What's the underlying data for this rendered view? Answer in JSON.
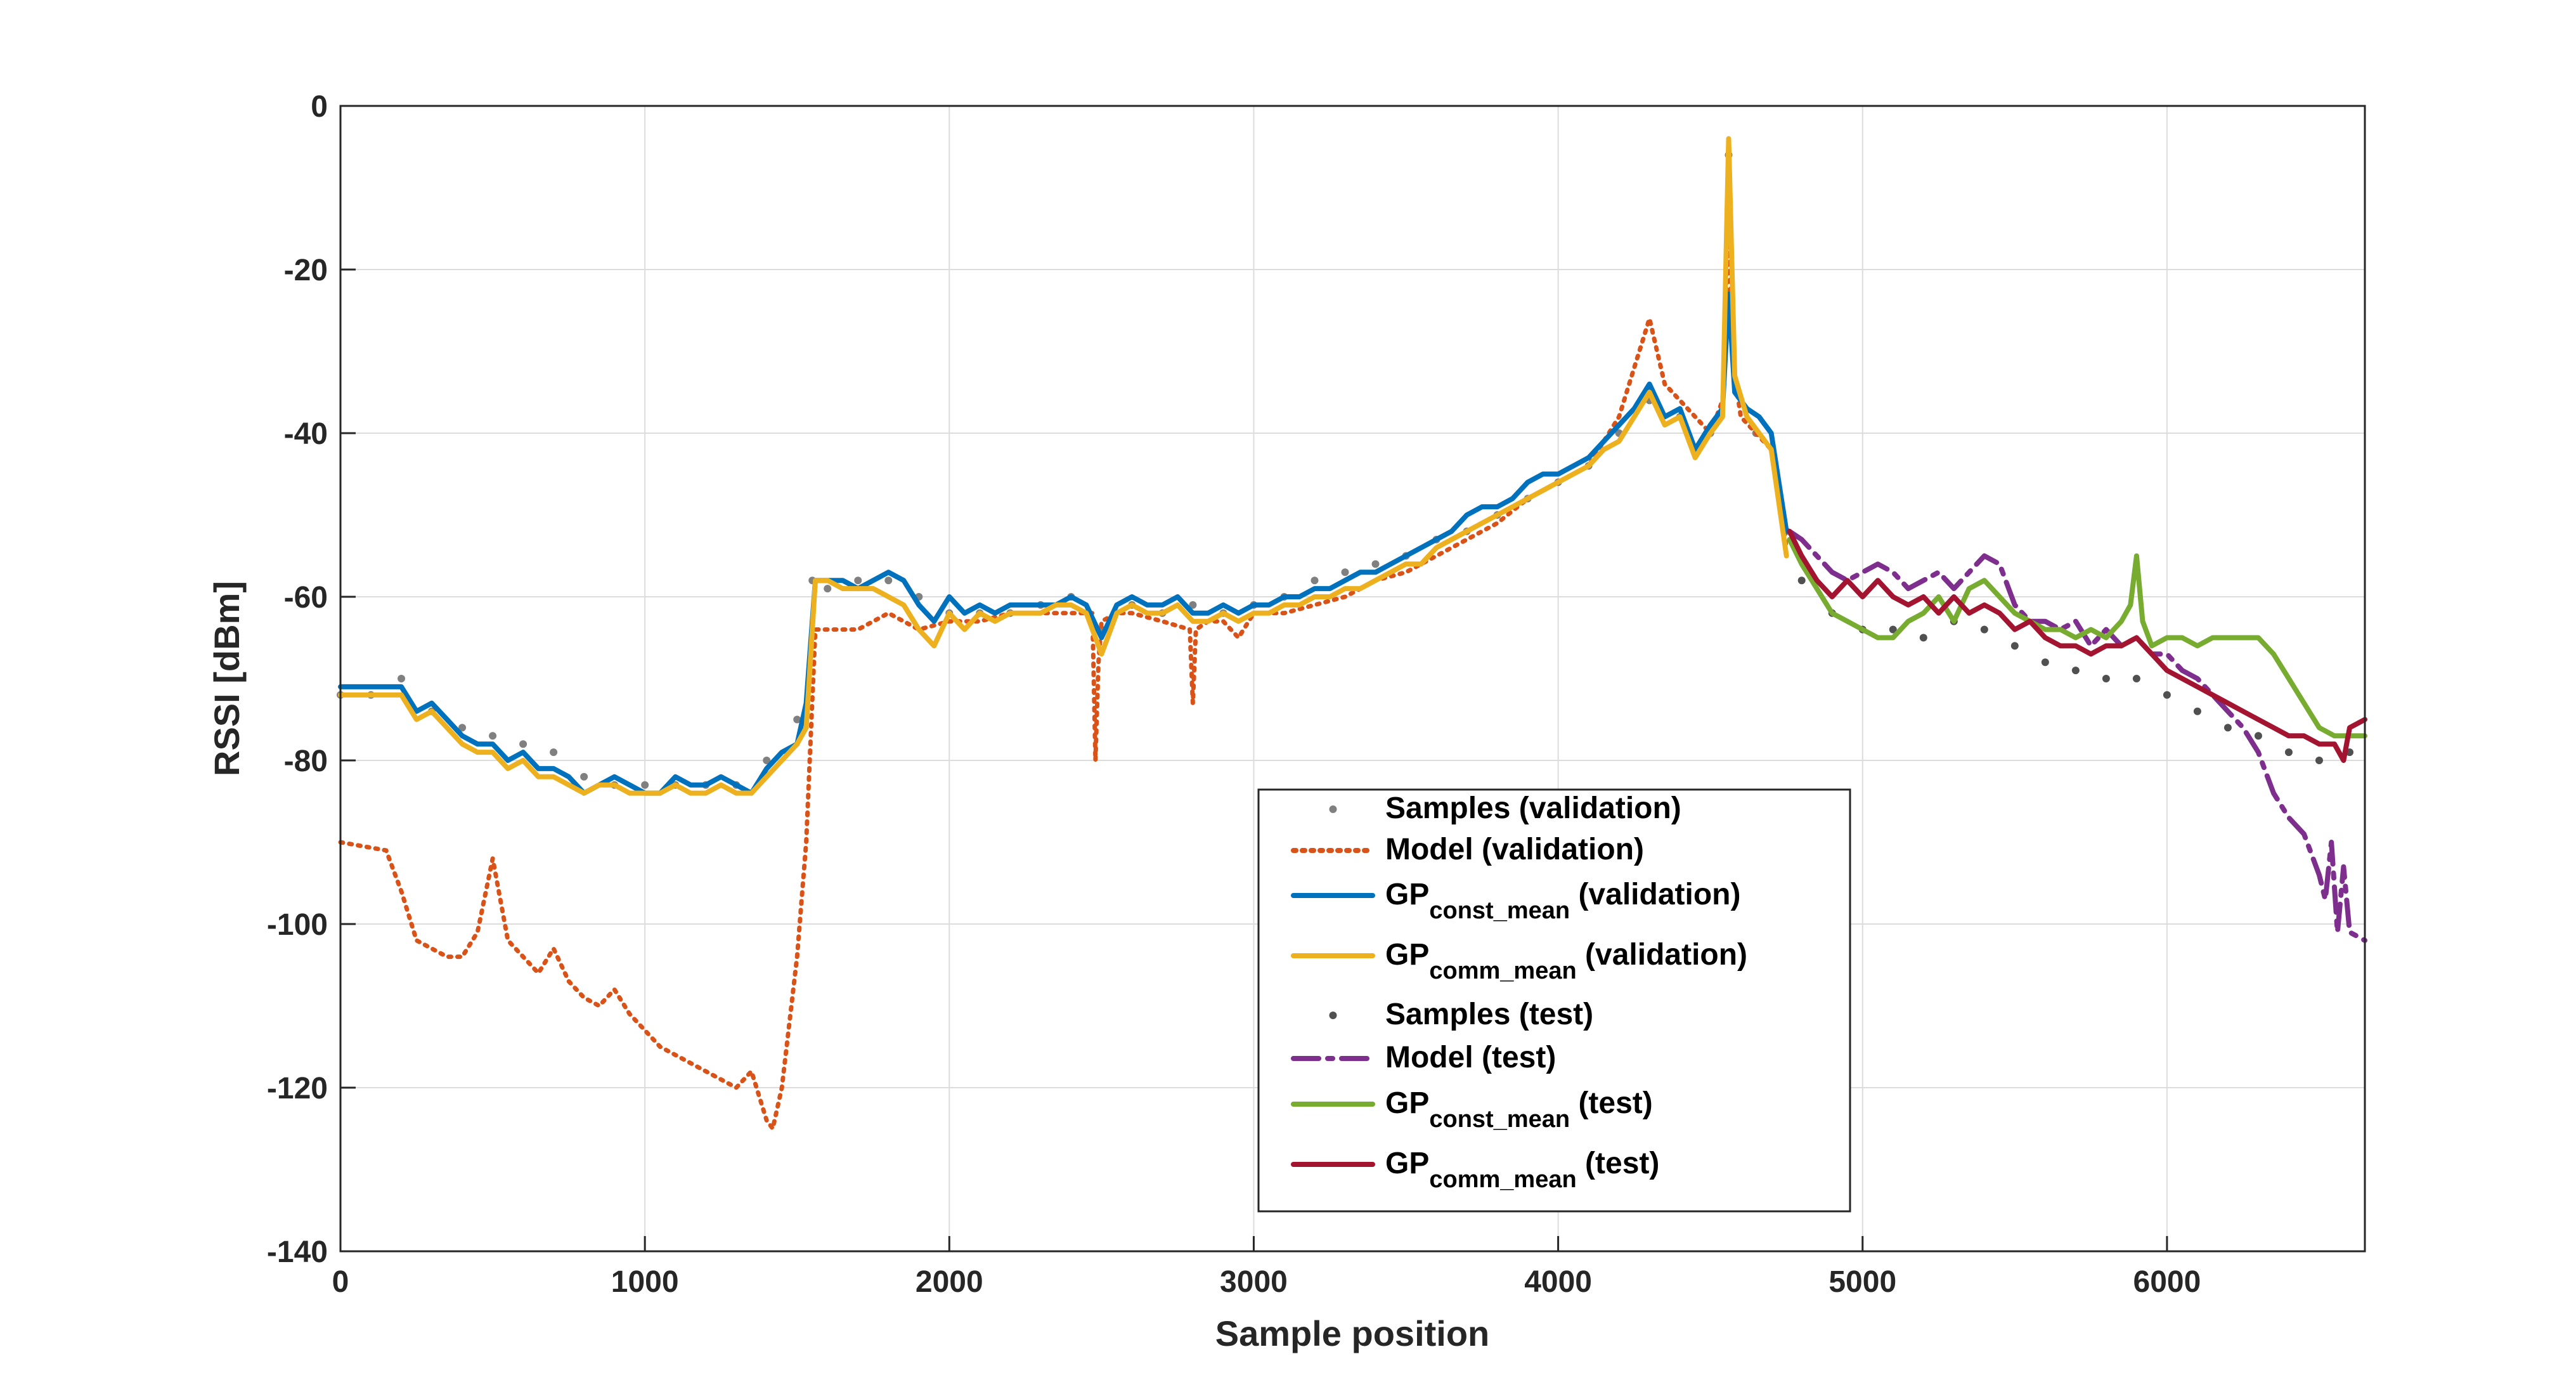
{
  "chart_data": {
    "type": "line",
    "title": "",
    "xlabel": "Sample position",
    "ylabel": "RSSI [dBm]",
    "xlim": [
      0,
      6650
    ],
    "ylim": [
      -140,
      0
    ],
    "xticks": [
      0,
      1000,
      2000,
      3000,
      4000,
      5000,
      6000
    ],
    "yticks": [
      0,
      -20,
      -40,
      -60,
      -80,
      -100,
      -120,
      -140
    ],
    "grid": true,
    "legend_position": "bottom-center",
    "series": [
      {
        "id": "samples_val",
        "legend_main": "Samples (validation)",
        "legend_sub": "",
        "legend_suffix": "",
        "kind": "scatter",
        "color": "#808080",
        "x": [
          0,
          100,
          200,
          300,
          400,
          500,
          600,
          700,
          800,
          900,
          1000,
          1100,
          1200,
          1300,
          1400,
          1500,
          1550,
          1600,
          1700,
          1800,
          1900,
          2000,
          2100,
          2200,
          2300,
          2400,
          2500,
          2600,
          2700,
          2800,
          2900,
          3000,
          3100,
          3200,
          3300,
          3400,
          3500,
          3600,
          3700,
          3800,
          3900,
          4000,
          4100,
          4200,
          4300,
          4400,
          4500,
          4560,
          4650,
          4750
        ],
        "y": [
          -72,
          -72,
          -70,
          -74,
          -76,
          -77,
          -78,
          -79,
          -82,
          -83,
          -83,
          -83,
          -83,
          -83,
          -80,
          -75,
          -58,
          -59,
          -58,
          -58,
          -60,
          -62,
          -62,
          -62,
          -61,
          -60,
          -64,
          -61,
          -62,
          -61,
          -62,
          -61,
          -60,
          -58,
          -57,
          -56,
          -55,
          -53,
          -52,
          -50,
          -48,
          -46,
          -44,
          -40,
          -36,
          -38,
          -40,
          -6,
          -40,
          -52
        ]
      },
      {
        "id": "model_val",
        "legend_main": "Model (validation)",
        "legend_sub": "",
        "legend_suffix": "",
        "kind": "dotted",
        "color": "#D95319",
        "x": [
          0,
          150,
          200,
          250,
          300,
          350,
          400,
          450,
          500,
          550,
          600,
          650,
          700,
          750,
          800,
          850,
          900,
          950,
          1000,
          1050,
          1100,
          1150,
          1200,
          1250,
          1300,
          1350,
          1400,
          1420,
          1450,
          1500,
          1530,
          1560,
          1600,
          1700,
          1800,
          1900,
          2000,
          2100,
          2200,
          2300,
          2400,
          2470,
          2480,
          2490,
          2500,
          2550,
          2600,
          2700,
          2790,
          2800,
          2810,
          2850,
          2900,
          2950,
          3000,
          3100,
          3200,
          3300,
          3400,
          3500,
          3600,
          3700,
          3800,
          3900,
          4000,
          4100,
          4200,
          4250,
          4300,
          4350,
          4400,
          4500,
          4540,
          4560,
          4580,
          4600,
          4650,
          4700,
          4750
        ],
        "y": [
          -90,
          -91,
          -96,
          -102,
          -103,
          -104,
          -104,
          -101,
          -92,
          -102,
          -104,
          -106,
          -103,
          -107,
          -109,
          -110,
          -108,
          -111,
          -113,
          -115,
          -116,
          -117,
          -118,
          -119,
          -120,
          -118,
          -124,
          -125,
          -120,
          -104,
          -90,
          -64,
          -64,
          -64,
          -62,
          -64,
          -63,
          -63,
          -62,
          -62,
          -62,
          -62,
          -80,
          -68,
          -63,
          -62,
          -62,
          -63,
          -64,
          -73,
          -64,
          -63,
          -63,
          -65,
          -62,
          -62,
          -61,
          -60,
          -58,
          -57,
          -55,
          -53,
          -51,
          -48,
          -46,
          -44,
          -38,
          -32,
          -26,
          -34,
          -36,
          -40,
          -36,
          -16,
          -33,
          -38,
          -40,
          -42,
          -54
        ]
      },
      {
        "id": "gp_const_val",
        "legend_main": "GP",
        "legend_sub": "const_mean",
        "legend_suffix": "(validation)",
        "kind": "solid",
        "color": "#0072BD",
        "x": [
          0,
          120,
          200,
          250,
          300,
          350,
          400,
          450,
          500,
          550,
          600,
          650,
          700,
          750,
          800,
          850,
          900,
          950,
          1000,
          1050,
          1100,
          1150,
          1200,
          1250,
          1300,
          1350,
          1400,
          1450,
          1500,
          1530,
          1560,
          1600,
          1650,
          1700,
          1750,
          1800,
          1850,
          1900,
          1950,
          2000,
          2050,
          2100,
          2150,
          2200,
          2250,
          2300,
          2350,
          2400,
          2450,
          2500,
          2550,
          2600,
          2650,
          2700,
          2750,
          2800,
          2850,
          2900,
          2950,
          3000,
          3050,
          3100,
          3150,
          3200,
          3250,
          3300,
          3350,
          3400,
          3450,
          3500,
          3550,
          3600,
          3650,
          3700,
          3750,
          3800,
          3850,
          3900,
          3950,
          4000,
          4050,
          4100,
          4150,
          4200,
          4250,
          4300,
          4350,
          4400,
          4450,
          4500,
          4540,
          4560,
          4580,
          4620,
          4660,
          4700,
          4750
        ],
        "y": [
          -71,
          -71,
          -71,
          -74,
          -73,
          -75,
          -77,
          -78,
          -78,
          -80,
          -79,
          -81,
          -81,
          -82,
          -84,
          -83,
          -82,
          -83,
          -84,
          -84,
          -82,
          -83,
          -83,
          -82,
          -83,
          -84,
          -81,
          -79,
          -78,
          -73,
          -58,
          -58,
          -58,
          -59,
          -58,
          -57,
          -58,
          -61,
          -63,
          -60,
          -62,
          -61,
          -62,
          -61,
          -61,
          -61,
          -61,
          -60,
          -61,
          -65,
          -61,
          -60,
          -61,
          -61,
          -60,
          -62,
          -62,
          -61,
          -62,
          -61,
          -61,
          -60,
          -60,
          -59,
          -59,
          -58,
          -57,
          -57,
          -56,
          -55,
          -54,
          -53,
          -52,
          -50,
          -49,
          -49,
          -48,
          -46,
          -45,
          -45,
          -44,
          -43,
          -41,
          -39,
          -37,
          -34,
          -38,
          -37,
          -42,
          -39,
          -37,
          -23,
          -35,
          -37,
          -38,
          -40,
          -52
        ]
      },
      {
        "id": "gp_comm_val",
        "legend_main": "GP",
        "legend_sub": "comm_mean",
        "legend_suffix": "(validation)",
        "kind": "solid",
        "color": "#EDB120",
        "x": [
          0,
          120,
          200,
          250,
          300,
          350,
          400,
          450,
          500,
          550,
          600,
          650,
          700,
          750,
          800,
          850,
          900,
          950,
          1000,
          1050,
          1100,
          1150,
          1200,
          1250,
          1300,
          1350,
          1400,
          1450,
          1500,
          1530,
          1560,
          1600,
          1650,
          1700,
          1750,
          1800,
          1850,
          1900,
          1950,
          2000,
          2050,
          2100,
          2150,
          2200,
          2250,
          2300,
          2350,
          2400,
          2450,
          2500,
          2550,
          2600,
          2650,
          2700,
          2750,
          2800,
          2850,
          2900,
          2950,
          3000,
          3050,
          3100,
          3150,
          3200,
          3250,
          3300,
          3350,
          3400,
          3450,
          3500,
          3550,
          3600,
          3650,
          3700,
          3750,
          3800,
          3850,
          3900,
          3950,
          4000,
          4050,
          4100,
          4150,
          4200,
          4250,
          4300,
          4350,
          4400,
          4450,
          4500,
          4540,
          4560,
          4580,
          4620,
          4660,
          4700,
          4750
        ],
        "y": [
          -72,
          -72,
          -72,
          -75,
          -74,
          -76,
          -78,
          -79,
          -79,
          -81,
          -80,
          -82,
          -82,
          -83,
          -84,
          -83,
          -83,
          -84,
          -84,
          -84,
          -83,
          -84,
          -84,
          -83,
          -84,
          -84,
          -82,
          -80,
          -78,
          -76,
          -58,
          -58,
          -59,
          -59,
          -59,
          -60,
          -61,
          -64,
          -66,
          -62,
          -64,
          -62,
          -63,
          -62,
          -62,
          -62,
          -61,
          -61,
          -62,
          -67,
          -62,
          -61,
          -62,
          -62,
          -61,
          -63,
          -63,
          -62,
          -63,
          -62,
          -62,
          -61,
          -61,
          -60,
          -60,
          -59,
          -59,
          -58,
          -57,
          -56,
          -56,
          -54,
          -53,
          -52,
          -51,
          -50,
          -49,
          -48,
          -47,
          -46,
          -45,
          -44,
          -42,
          -41,
          -38,
          -35,
          -39,
          -38,
          -43,
          -40,
          -38,
          -4,
          -33,
          -38,
          -40,
          -42,
          -55
        ]
      },
      {
        "id": "samples_test",
        "legend_main": "Samples (test)",
        "legend_sub": "",
        "legend_suffix": "",
        "kind": "scatter",
        "color": "#505050",
        "x": [
          4800,
          4900,
          5000,
          5100,
          5200,
          5300,
          5400,
          5500,
          5600,
          5700,
          5800,
          5900,
          6000,
          6100,
          6200,
          6300,
          6400,
          6500,
          6600
        ],
        "y": [
          -58,
          -62,
          -64,
          -64,
          -65,
          -63,
          -64,
          -66,
          -68,
          -69,
          -70,
          -70,
          -72,
          -74,
          -76,
          -77,
          -79,
          -80,
          -79
        ]
      },
      {
        "id": "model_test",
        "legend_main": "Model (test)",
        "legend_sub": "",
        "legend_suffix": "",
        "kind": "dashdot",
        "color": "#7E2F8E",
        "x": [
          4760,
          4800,
          4850,
          4900,
          4950,
          5000,
          5050,
          5100,
          5150,
          5200,
          5250,
          5300,
          5350,
          5400,
          5450,
          5500,
          5550,
          5600,
          5650,
          5700,
          5750,
          5800,
          5850,
          5900,
          5950,
          6000,
          6050,
          6100,
          6150,
          6200,
          6250,
          6300,
          6350,
          6400,
          6450,
          6500,
          6520,
          6540,
          6560,
          6580,
          6600,
          6650
        ],
        "y": [
          -52,
          -53,
          -55,
          -57,
          -58,
          -57,
          -56,
          -57,
          -59,
          -58,
          -57,
          -59,
          -57,
          -55,
          -56,
          -61,
          -63,
          -63,
          -64,
          -63,
          -66,
          -64,
          -66,
          -65,
          -67,
          -67,
          -69,
          -70,
          -72,
          -74,
          -76,
          -79,
          -84,
          -87,
          -89,
          -94,
          -97,
          -90,
          -101,
          -93,
          -101,
          -102
        ]
      },
      {
        "id": "gp_const_test",
        "legend_main": "GP",
        "legend_sub": "const_mean",
        "legend_suffix": "(test)",
        "kind": "solid",
        "color": "#77AC30",
        "x": [
          4760,
          4800,
          4850,
          4900,
          4950,
          5000,
          5050,
          5100,
          5150,
          5200,
          5250,
          5300,
          5350,
          5400,
          5450,
          5500,
          5550,
          5600,
          5650,
          5700,
          5750,
          5800,
          5850,
          5880,
          5900,
          5920,
          5950,
          6000,
          6050,
          6100,
          6150,
          6200,
          6250,
          6300,
          6350,
          6400,
          6450,
          6500,
          6550,
          6650
        ],
        "y": [
          -53,
          -56,
          -59,
          -62,
          -63,
          -64,
          -65,
          -65,
          -63,
          -62,
          -60,
          -63,
          -59,
          -58,
          -60,
          -62,
          -63,
          -64,
          -64,
          -65,
          -64,
          -65,
          -63,
          -61,
          -55,
          -63,
          -66,
          -65,
          -65,
          -66,
          -65,
          -65,
          -65,
          -65,
          -67,
          -70,
          -73,
          -76,
          -77,
          -77
        ]
      },
      {
        "id": "gp_comm_test",
        "legend_main": "GP",
        "legend_sub": "comm_mean",
        "legend_suffix": "(test)",
        "kind": "solid",
        "color": "#A2142F",
        "x": [
          4760,
          4800,
          4850,
          4900,
          4950,
          5000,
          5050,
          5100,
          5150,
          5200,
          5250,
          5300,
          5350,
          5400,
          5450,
          5500,
          5550,
          5600,
          5650,
          5700,
          5750,
          5800,
          5850,
          5900,
          5950,
          6000,
          6050,
          6100,
          6150,
          6200,
          6250,
          6300,
          6350,
          6400,
          6450,
          6500,
          6550,
          6580,
          6600,
          6650
        ],
        "y": [
          -52,
          -55,
          -58,
          -60,
          -58,
          -60,
          -58,
          -60,
          -61,
          -60,
          -62,
          -60,
          -62,
          -61,
          -62,
          -64,
          -63,
          -65,
          -66,
          -66,
          -67,
          -66,
          -66,
          -65,
          -67,
          -69,
          -70,
          -71,
          -72,
          -73,
          -74,
          -75,
          -76,
          -77,
          -77,
          -78,
          -78,
          -80,
          -76,
          -75
        ]
      }
    ]
  }
}
